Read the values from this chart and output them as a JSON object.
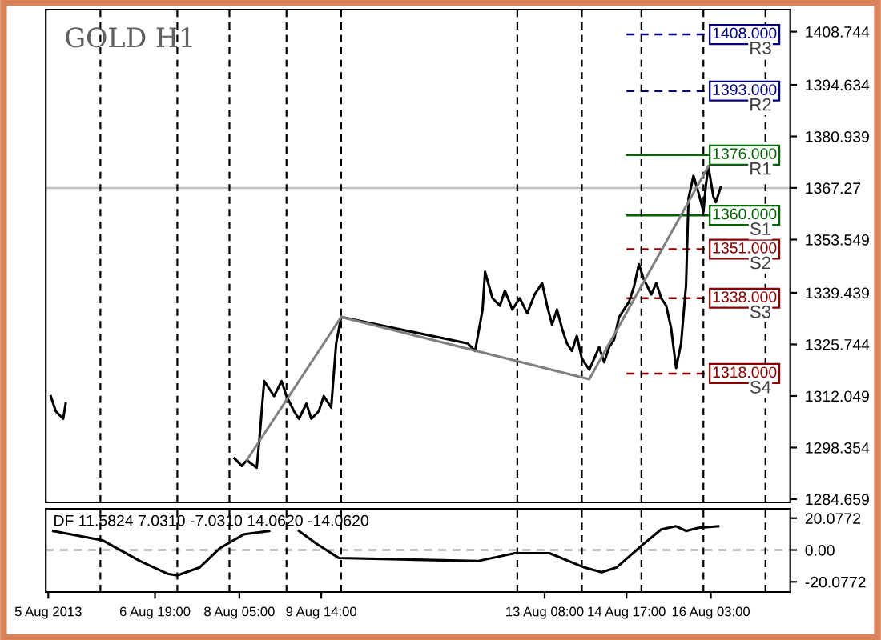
{
  "chart_data": [
    {
      "type": "line",
      "title": "GOLD H1",
      "xlim": [
        "2013-08-04T23:00",
        "2013-08-17T11:00"
      ],
      "ylim": [
        1283.8,
        1414.6
      ],
      "yticks": [
        1284.659,
        1298.354,
        1312.049,
        1325.744,
        1339.439,
        1353.549,
        1367.27,
        1380.939,
        1394.634,
        1408.744
      ],
      "tick_labels": "y",
      "grid": false,
      "series": [
        {
          "color": "#000000",
          "x": [
            "2013-08-05T01:00",
            "2013-08-05T03:00",
            "2013-08-05T06:00",
            "2013-08-05T07:00",
            "2013-08-06T21:00",
            "2013-08-08T03:00",
            "2013-08-08T06:00",
            "2013-08-08T08:00",
            "2013-08-08T12:00",
            "2013-08-08T13:00",
            "2013-08-08T15:00",
            "2013-08-08T17:00",
            "2013-08-08T19:00",
            "2013-08-08T22:00",
            "2013-08-09T00:00",
            "2013-08-09T03:00",
            "2013-08-09T05:00",
            "2013-08-09T08:00",
            "2013-08-09T10:00",
            "2013-08-09T13:00",
            "2013-08-09T15:00",
            "2013-08-09T18:00",
            "2013-08-09T20:00",
            "2013-08-09T22:00",
            "2013-08-12T01:00",
            "2013-08-12T04:00",
            "2013-08-12T07:00",
            "2013-08-12T08:00",
            "2013-08-12T11:00",
            "2013-08-12T14:00",
            "2013-08-12T16:00",
            "2013-08-12T19:00",
            "2013-08-12T22:00",
            "2013-08-13T01:00",
            "2013-08-13T04:00",
            "2013-08-13T07:00",
            "2013-08-13T09:00",
            "2013-08-13T11:00",
            "2013-08-13T13:00",
            "2013-08-13T15:00",
            "2013-08-13T17:00",
            "2013-08-13T19:00",
            "2013-08-13T21:00",
            "2013-08-13T23:00",
            "2013-08-14T02:00",
            "2013-08-14T04:00",
            "2013-08-14T06:00",
            "2013-08-14T08:00",
            "2013-08-14T10:00",
            "2013-08-14T12:00",
            "2013-08-14T14:00",
            "2013-08-14T16:00",
            "2013-08-14T18:00",
            "2013-08-14T20:00",
            "2013-08-14T22:00",
            "2013-08-15T00:00",
            "2013-08-15T03:00",
            "2013-08-15T05:00",
            "2013-08-15T07:00",
            "2013-08-15T09:00",
            "2013-08-15T11:00",
            "2013-08-15T13:00",
            "2013-08-15T15:00",
            "2013-08-15T17:00",
            "2013-08-15T18:00",
            "2013-08-15T20:00",
            "2013-08-15T22:00",
            "2013-08-16T00:00",
            "2013-08-16T01:00",
            "2013-08-16T02:00",
            "2013-08-16T04:00",
            "2013-08-16T05:00",
            "2013-08-16T07:00"
          ],
          "values": [
            1312,
            1308,
            1306,
            1310,
            null,
            1295.5,
            1293.5,
            1295,
            1293,
            1300,
            1316,
            1314,
            1312,
            1316,
            1312,
            1308,
            1306,
            1310,
            1306,
            1308,
            1312,
            1309,
            1326,
            1333,
            1326,
            1324,
            1335,
            1345,
            1338,
            1336,
            1340,
            1335,
            1338,
            1334,
            1339,
            1342,
            1336,
            1331,
            1335,
            1330,
            1326,
            1324,
            1328,
            1322,
            1319,
            1322,
            1325,
            1321,
            1325,
            1327,
            1333,
            1335,
            1337,
            1341,
            1347,
            1343,
            1339,
            1342,
            1338,
            1336,
            1330,
            1319.5,
            1326,
            1341.5,
            1364.5,
            1370.5,
            1366,
            1361,
            1368,
            1373,
            1365,
            1363.5,
            1367.5
          ]
        },
        {
          "color": "#808080",
          "x": [
            "2013-08-08T08:00",
            "2013-08-09T22:00",
            "2013-08-14T02:00",
            "2013-08-16T02:00"
          ],
          "values": [
            1295,
            1333,
            1316.5,
            1373
          ]
        }
      ],
      "ref_lines": [
        {
          "axis": "y",
          "value": 1367.27,
          "color": "#c0c0c0",
          "line_style": "solid"
        },
        {
          "axis": "y",
          "value": 1408,
          "label": "1408.000",
          "color": "#000080",
          "line_style": "dashed"
        },
        {
          "axis": "y",
          "value": 1393,
          "label": "1393.000",
          "color": "#000080",
          "line_style": "dashed"
        },
        {
          "axis": "y",
          "value": 1376,
          "label": "1376.000",
          "color": "#006400",
          "line_style": "solid"
        },
        {
          "axis": "y",
          "value": 1360,
          "label": "1360.000",
          "color": "#006400",
          "line_style": "solid"
        },
        {
          "axis": "y",
          "value": 1351,
          "label": "1351.000",
          "color": "#8b0000",
          "line_style": "dashed"
        },
        {
          "axis": "y",
          "value": 1338,
          "label": "1338.000",
          "color": "#8b0000",
          "line_style": "dashed"
        },
        {
          "axis": "y",
          "value": 1318,
          "label": "1318.000",
          "color": "#8b0000",
          "line_style": "dashed"
        },
        {
          "axis": "x",
          "value": "2013-08-05T21:00",
          "color": "#000000",
          "line_style": "dashed"
        },
        {
          "axis": "x",
          "value": "2013-08-07T04:00",
          "color": "#000000",
          "line_style": "dashed"
        },
        {
          "axis": "x",
          "value": "2013-08-08T01:00",
          "color": "#000000",
          "line_style": "dashed"
        },
        {
          "axis": "x",
          "value": "2013-08-09T00:00",
          "color": "#000000",
          "line_style": "dashed"
        },
        {
          "axis": "x",
          "value": "2013-08-09T22:00",
          "color": "#000000",
          "line_style": "dashed"
        },
        {
          "axis": "x",
          "value": "2013-08-12T21:00",
          "color": "#000000",
          "line_style": "dashed"
        },
        {
          "axis": "x",
          "value": "2013-08-13T23:00",
          "color": "#000000",
          "line_style": "dashed"
        },
        {
          "axis": "x",
          "value": "2013-08-14T23:00",
          "color": "#000000",
          "line_style": "dashed"
        },
        {
          "axis": "x",
          "value": "2013-08-16T00:00",
          "color": "#000000",
          "line_style": "dashed"
        },
        {
          "axis": "x",
          "value": "2013-08-17T01:00",
          "color": "#000000",
          "line_style": "dashed"
        }
      ],
      "annotations": [
        {
          "text": "R3",
          "x": "2013-08-16T23:00",
          "y": 1404
        },
        {
          "text": "R2",
          "x": "2013-08-16T23:00",
          "y": 1389
        },
        {
          "text": "R1",
          "x": "2013-08-16T23:00",
          "y": 1372
        },
        {
          "text": "S1",
          "x": "2013-08-16T23:00",
          "y": 1356
        },
        {
          "text": "S2",
          "x": "2013-08-16T23:00",
          "y": 1347
        },
        {
          "text": "S3",
          "x": "2013-08-16T23:00",
          "y": 1334
        },
        {
          "text": "S4",
          "x": "2013-08-16T23:00",
          "y": 1314
        }
      ]
    },
    {
      "type": "line",
      "title": "DF 11.5824 7.0310 -7.0310 14.0620 -14.0620",
      "xlim": [
        "2013-08-04T23:00",
        "2013-08-17T11:00"
      ],
      "ylim": [
        -26.5,
        26.0
      ],
      "yticks": [
        -20.0772,
        {
          "value": 0,
          "label": "0.00"
        },
        20.0772
      ],
      "xticks": [
        {
          "value": "2013-08-05",
          "label": "5 Aug 2013"
        },
        {
          "value": "2013-08-06T19:00",
          "label": "6 Aug 19:00"
        },
        {
          "value": "2013-08-08T05:00",
          "label": "8 Aug 05:00"
        },
        {
          "value": "2013-08-09T14:00",
          "label": "9 Aug 14:00"
        },
        {
          "value": "2013-08-13T08:00",
          "label": "13 Aug 08:00"
        },
        {
          "value": "2013-08-14T17:00",
          "label": "14 Aug 17:00"
        },
        {
          "value": "2013-08-16T03:00",
          "label": "16 Aug 03:00"
        }
      ],
      "grid": false,
      "series": [
        {
          "color": "#000000",
          "x": [
            "2013-08-05T02:00",
            "2013-08-05T22:00",
            "2013-08-06T13:00",
            "2013-08-07T00:00",
            "2013-08-07T04:00",
            "2013-08-07T13:00",
            "2013-08-07T21:00",
            "2013-08-08T07:00",
            "2013-08-08T17:00",
            "2013-08-08T23:00",
            "2013-08-09T05:00",
            "2013-08-09T12:00",
            "2013-08-09T21:00",
            "2013-08-12T05:00",
            "2013-08-12T20:00",
            "2013-08-13T10:00",
            "2013-08-14T00:00",
            "2013-08-14T07:00",
            "2013-08-14T13:00",
            "2013-08-15T00:00",
            "2013-08-15T07:00",
            "2013-08-15T13:00",
            "2013-08-15T17:00",
            "2013-08-15T22:00",
            "2013-08-16T06:00"
          ],
          "values": [
            12,
            6,
            -7,
            -15,
            -16,
            -11,
            1,
            10,
            12,
            null,
            12,
            4,
            -5,
            -7,
            -2,
            -2,
            -11,
            -14,
            -11,
            4,
            13,
            15,
            12,
            14,
            15
          ]
        }
      ],
      "ref_lines": [
        {
          "axis": "y",
          "value": 0,
          "color": "#b0b0b0",
          "line_style": "dashed"
        },
        {
          "axis": "x",
          "value": "2013-08-05T21:00",
          "color": "#000000",
          "line_style": "dashed"
        },
        {
          "axis": "x",
          "value": "2013-08-07T04:00",
          "color": "#000000",
          "line_style": "dashed"
        },
        {
          "axis": "x",
          "value": "2013-08-08T01:00",
          "color": "#000000",
          "line_style": "dashed"
        },
        {
          "axis": "x",
          "value": "2013-08-09T00:00",
          "color": "#000000",
          "line_style": "dashed"
        },
        {
          "axis": "x",
          "value": "2013-08-09T22:00",
          "color": "#000000",
          "line_style": "dashed"
        },
        {
          "axis": "x",
          "value": "2013-08-12T21:00",
          "color": "#000000",
          "line_style": "dashed"
        },
        {
          "axis": "x",
          "value": "2013-08-13T23:00",
          "color": "#000000",
          "line_style": "dashed"
        },
        {
          "axis": "x",
          "value": "2013-08-14T23:00",
          "color": "#000000",
          "line_style": "dashed"
        },
        {
          "axis": "x",
          "value": "2013-08-16T00:00",
          "color": "#000000",
          "line_style": "dashed"
        },
        {
          "axis": "x",
          "value": "2013-08-17T01:00",
          "color": "#000000",
          "line_style": "dashed"
        }
      ]
    }
  ]
}
